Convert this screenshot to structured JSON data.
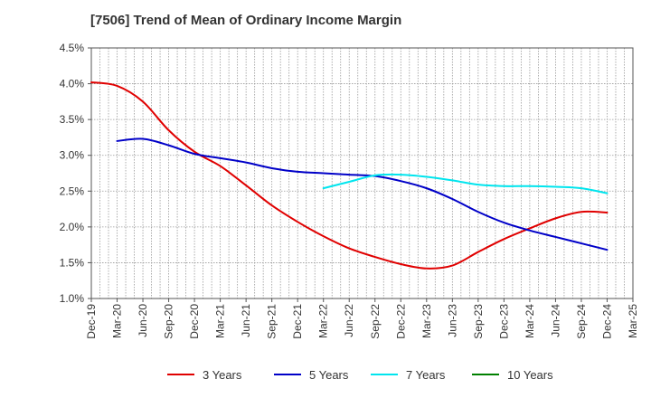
{
  "chart_data": {
    "type": "line",
    "title": "[7506]  Trend of Mean of Ordinary Income Margin",
    "xlabel": "",
    "ylabel": "",
    "x_ticks": [
      "Dec-19",
      "Mar-20",
      "Jun-20",
      "Sep-20",
      "Dec-20",
      "Mar-21",
      "Jun-21",
      "Sep-21",
      "Dec-21",
      "Mar-22",
      "Jun-22",
      "Sep-22",
      "Dec-22",
      "Mar-23",
      "Jun-23",
      "Sep-23",
      "Dec-23",
      "Mar-24",
      "Jun-24",
      "Sep-24",
      "Dec-24",
      "Mar-25"
    ],
    "y_ticks": [
      "1.0%",
      "1.5%",
      "2.0%",
      "2.5%",
      "3.0%",
      "3.5%",
      "4.0%",
      "4.5%"
    ],
    "ylim": [
      1.0,
      4.5
    ],
    "grid": true,
    "legend_position": "bottom",
    "series": [
      {
        "name": "3 Years",
        "color": "#e00000",
        "x": [
          "Dec-19",
          "Mar-20",
          "Jun-20",
          "Sep-20",
          "Dec-20",
          "Mar-21",
          "Jun-21",
          "Sep-21",
          "Dec-21",
          "Mar-22",
          "Jun-22",
          "Sep-22",
          "Dec-22",
          "Mar-23",
          "Jun-23",
          "Sep-23",
          "Dec-23",
          "Mar-24",
          "Jun-24",
          "Sep-24",
          "Dec-24"
        ],
        "values": [
          4.02,
          3.97,
          3.75,
          3.35,
          3.05,
          2.85,
          2.58,
          2.3,
          2.07,
          1.87,
          1.7,
          1.58,
          1.48,
          1.42,
          1.46,
          1.65,
          1.83,
          1.98,
          2.12,
          2.21,
          2.2
        ]
      },
      {
        "name": "5 Years",
        "color": "#0000c8",
        "x": [
          "Mar-20",
          "Jun-20",
          "Sep-20",
          "Dec-20",
          "Mar-21",
          "Jun-21",
          "Sep-21",
          "Dec-21",
          "Mar-22",
          "Jun-22",
          "Sep-22",
          "Dec-22",
          "Mar-23",
          "Jun-23",
          "Sep-23",
          "Dec-23",
          "Mar-24",
          "Jun-24",
          "Sep-24",
          "Dec-24"
        ],
        "values": [
          3.2,
          3.23,
          3.14,
          3.02,
          2.96,
          2.9,
          2.82,
          2.77,
          2.75,
          2.73,
          2.71,
          2.64,
          2.54,
          2.39,
          2.21,
          2.06,
          1.95,
          1.86,
          1.77,
          1.68
        ]
      },
      {
        "name": "7 Years",
        "color": "#00e5ee",
        "x": [
          "Mar-22",
          "Jun-22",
          "Sep-22",
          "Dec-22",
          "Mar-23",
          "Jun-23",
          "Sep-23",
          "Dec-23",
          "Mar-24",
          "Jun-24",
          "Sep-24",
          "Dec-24"
        ],
        "values": [
          2.54,
          2.63,
          2.72,
          2.73,
          2.7,
          2.65,
          2.59,
          2.57,
          2.57,
          2.56,
          2.54,
          2.47
        ]
      },
      {
        "name": "10 Years",
        "color": "#008000",
        "x": [],
        "values": []
      }
    ]
  }
}
